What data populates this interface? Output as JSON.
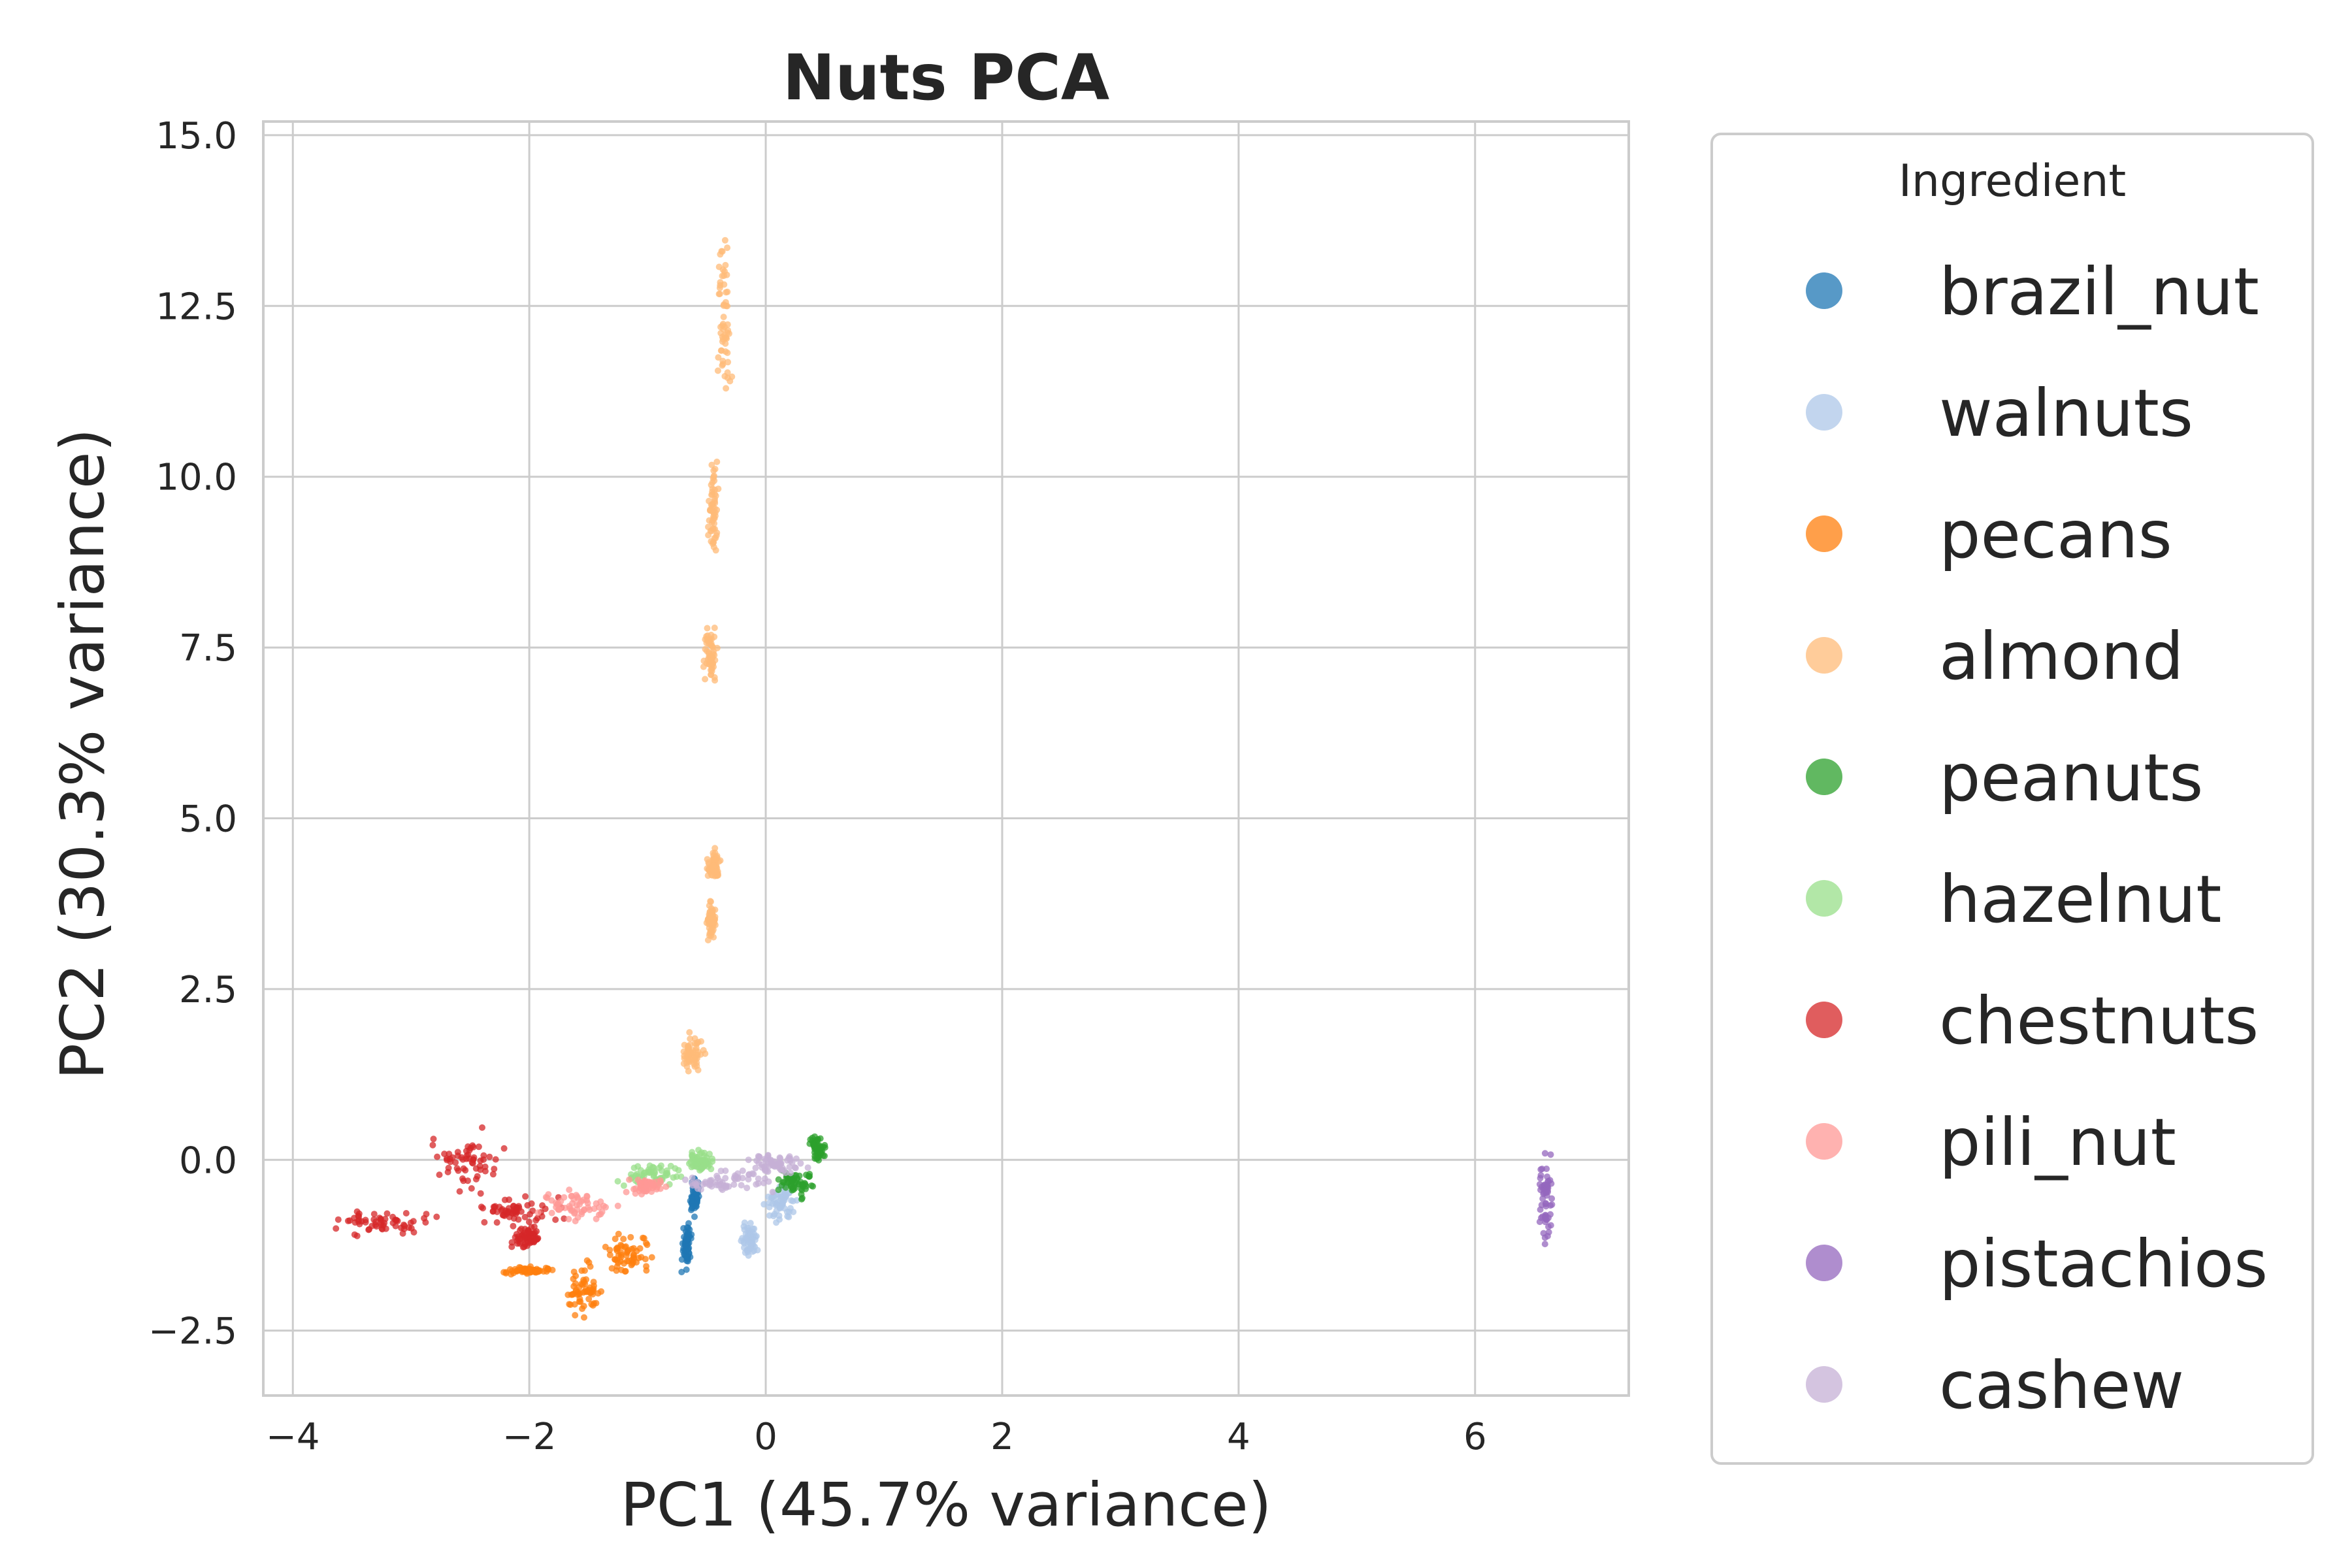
{
  "chart_data": {
    "type": "scatter",
    "title": "Nuts PCA",
    "xlabel": "PC1 (45.7% variance)",
    "ylabel": "PC2 (30.3% variance)",
    "xlim": [
      -4.25,
      7.3
    ],
    "ylim": [
      -3.45,
      15.2
    ],
    "xticks": [
      -4,
      -2,
      0,
      2,
      4,
      6
    ],
    "xtick_labels": [
      "−4",
      "−2",
      "0",
      "2",
      "4",
      "6"
    ],
    "yticks": [
      -2.5,
      0.0,
      2.5,
      5.0,
      7.5,
      10.0,
      12.5,
      15.0
    ],
    "ytick_labels": [
      "−2.5",
      "0.0",
      "2.5",
      "5.0",
      "7.5",
      "10.0",
      "12.5",
      "15.0"
    ],
    "grid": true,
    "legend": {
      "title": "Ingredient",
      "placement": "outside-right"
    },
    "series": [
      {
        "name": "brazil_nut",
        "color": "#1f77b4",
        "clusters": [
          [
            -0.72,
            -1.7,
            -0.62,
            -0.85
          ],
          [
            -0.65,
            -0.9,
            -0.55,
            -0.15
          ]
        ]
      },
      {
        "name": "walnuts",
        "color": "#aec7e8",
        "clusters": [
          [
            -0.22,
            -1.5,
            -0.05,
            -0.85
          ],
          [
            -0.05,
            -1.0,
            0.3,
            -0.25
          ]
        ]
      },
      {
        "name": "pecans",
        "color": "#ff7f0e",
        "clusters": [
          [
            -1.75,
            -2.5,
            -1.35,
            -1.4
          ],
          [
            -1.45,
            -1.75,
            -0.9,
            -1.0
          ],
          [
            -2.3,
            -1.7,
            -1.7,
            -1.55
          ]
        ]
      },
      {
        "name": "almond",
        "color": "#ffbb78",
        "clusters": [
          [
            -0.42,
            10.4,
            -0.28,
            14.2
          ],
          [
            -0.5,
            8.6,
            -0.38,
            10.5
          ],
          [
            -0.55,
            6.9,
            -0.4,
            7.9
          ],
          [
            -0.52,
            4.0,
            -0.36,
            4.6
          ],
          [
            -0.52,
            3.1,
            -0.4,
            3.9
          ],
          [
            -0.75,
            1.2,
            -0.5,
            1.9
          ]
        ]
      },
      {
        "name": "peanuts",
        "color": "#2ca02c",
        "clusters": [
          [
            0.05,
            -0.6,
            0.45,
            -0.05
          ],
          [
            0.35,
            -0.1,
            0.52,
            0.4
          ]
        ]
      },
      {
        "name": "hazelnut",
        "color": "#98df8a",
        "clusters": [
          [
            -1.3,
            -0.45,
            -0.6,
            0.0
          ],
          [
            -0.7,
            -0.25,
            -0.4,
            0.2
          ]
        ]
      },
      {
        "name": "chestnuts",
        "color": "#d62728",
        "clusters": [
          [
            -3.8,
            -1.15,
            -2.6,
            -0.7
          ],
          [
            -2.95,
            -0.6,
            -2.1,
            0.6
          ],
          [
            -2.6,
            -1.05,
            -1.6,
            -0.45
          ],
          [
            -2.2,
            -1.4,
            -1.85,
            -0.9
          ]
        ]
      },
      {
        "name": "pili_nut",
        "color": "#ff9896",
        "clusters": [
          [
            -2.1,
            -0.95,
            -1.1,
            -0.4
          ],
          [
            -1.2,
            -0.55,
            -0.8,
            -0.2
          ]
        ]
      },
      {
        "name": "pistachios",
        "color": "#9467bd",
        "clusters": [
          [
            6.52,
            -1.45,
            6.68,
            0.3
          ]
        ]
      },
      {
        "name": "cashew",
        "color": "#c5b0d5",
        "clusters": [
          [
            -0.9,
            -0.55,
            0.2,
            -0.1
          ],
          [
            -0.3,
            -0.25,
            0.4,
            0.15
          ]
        ]
      }
    ]
  }
}
